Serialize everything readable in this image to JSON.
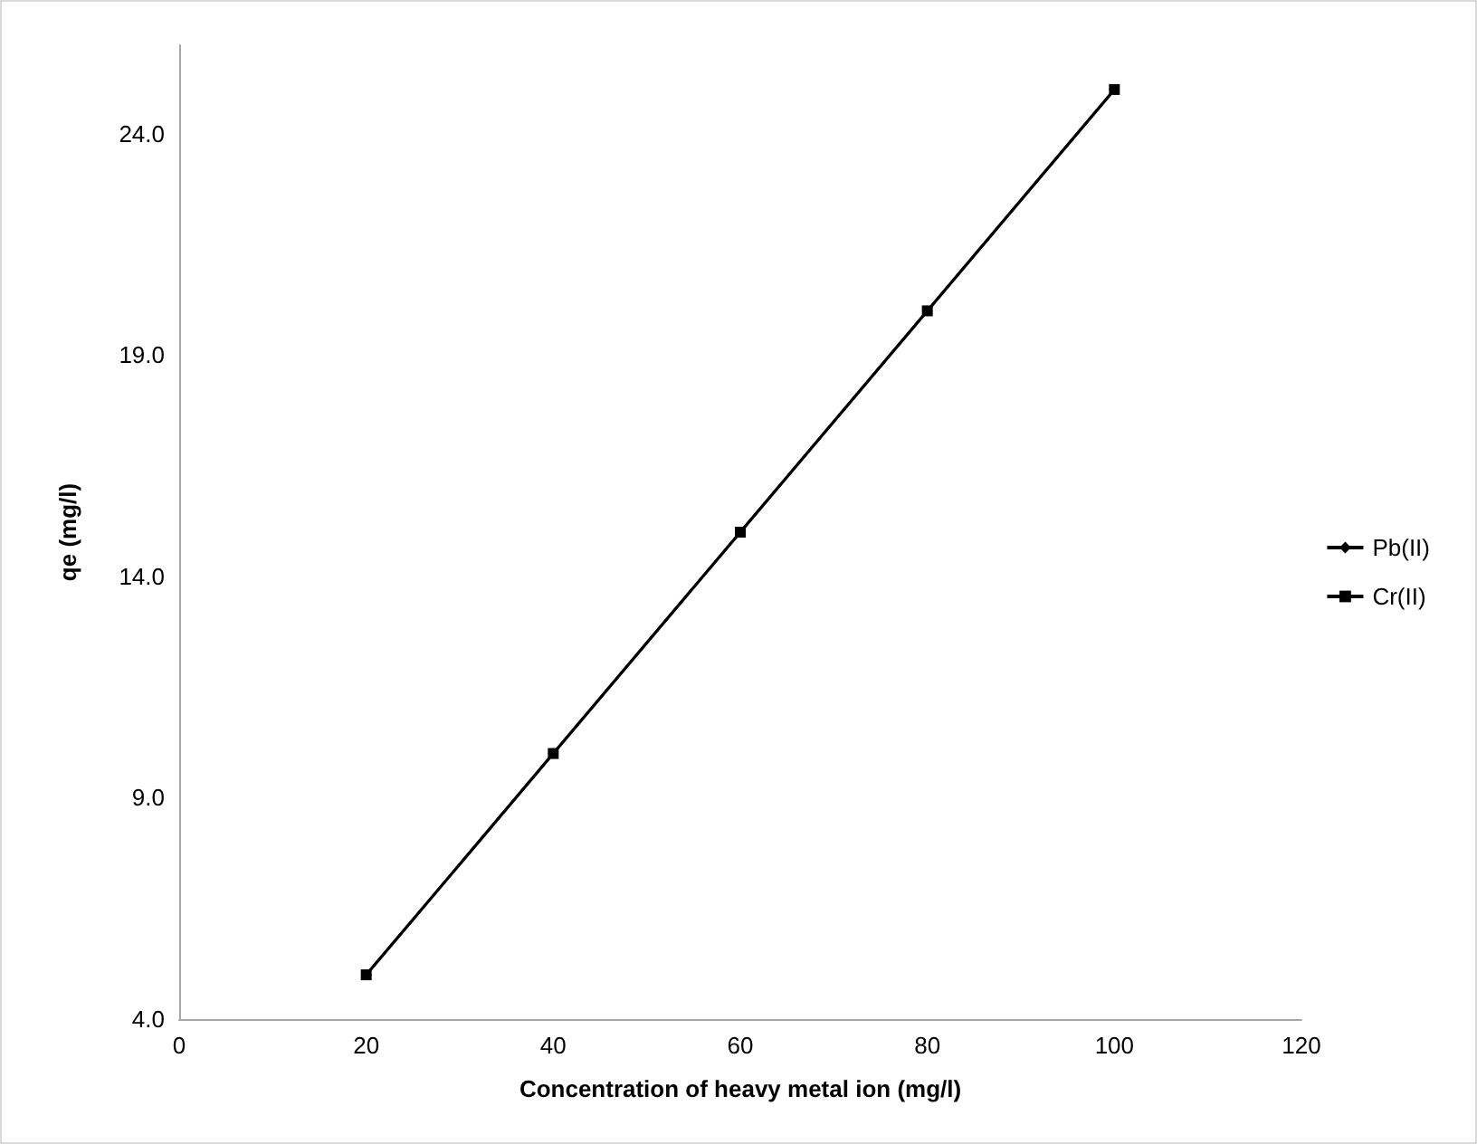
{
  "chart_data": {
    "type": "line",
    "xlabel": "Concentration of heavy metal ion (mg/l)",
    "ylabel": "qe (mg/l)",
    "x": [
      20,
      40,
      60,
      80,
      100
    ],
    "series": [
      {
        "name": "Pb(II)",
        "color": "#000000",
        "marker": "diamond",
        "values": [
          5,
          10,
          15,
          20,
          25
        ]
      },
      {
        "name": "Cr(II)",
        "color": "#000000",
        "marker": "square",
        "values": [
          5,
          10,
          15,
          20,
          25
        ]
      }
    ],
    "xlim": [
      0,
      120
    ],
    "xticks": [
      0,
      20,
      40,
      60,
      80,
      100,
      120
    ],
    "ylim": [
      4,
      26
    ],
    "yticks": [
      {
        "value": 4,
        "label": "4.0"
      },
      {
        "value": 9,
        "label": "9.0"
      },
      {
        "value": 14,
        "label": "14.0"
      },
      {
        "value": 19,
        "label": "19.0"
      },
      {
        "value": 24,
        "label": "24.0"
      }
    ],
    "grid": false,
    "legend": "right",
    "line_style": "solid"
  }
}
